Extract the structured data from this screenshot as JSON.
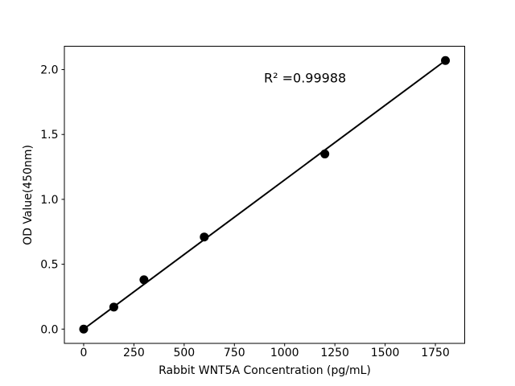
{
  "figure": {
    "background": "#ffffff"
  },
  "chart_data": {
    "type": "scatter",
    "title": "",
    "xlabel": "Rabbit WNT5A Concentration (pg/mL)",
    "ylabel": "OD Value(450nm)",
    "annotation": "R² =0.99988",
    "r_squared": 0.99988,
    "x": [
      0,
      150,
      300,
      600,
      1200,
      1800
    ],
    "y": [
      0.0,
      0.17,
      0.38,
      0.71,
      1.35,
      2.07
    ],
    "fit_line": {
      "x": [
        0,
        1800
      ],
      "y": [
        0.0,
        2.07
      ]
    },
    "xticks": [
      "0",
      "250",
      "500",
      "750",
      "1000",
      "1250",
      "1500",
      "1750"
    ],
    "xtick_values": [
      0,
      250,
      500,
      750,
      1000,
      1250,
      1500,
      1750
    ],
    "yticks": [
      "0.0",
      "0.5",
      "1.0",
      "1.5",
      "2.0"
    ],
    "ytick_values": [
      0.0,
      0.5,
      1.0,
      1.5,
      2.0
    ],
    "xlim": [
      -96,
      1896
    ],
    "ylim": [
      -0.11,
      2.18
    ],
    "grid": false,
    "legend": null,
    "marker_color": "#000000",
    "line_color": "#000000",
    "axis_color": "#000000",
    "background": "#ffffff"
  }
}
